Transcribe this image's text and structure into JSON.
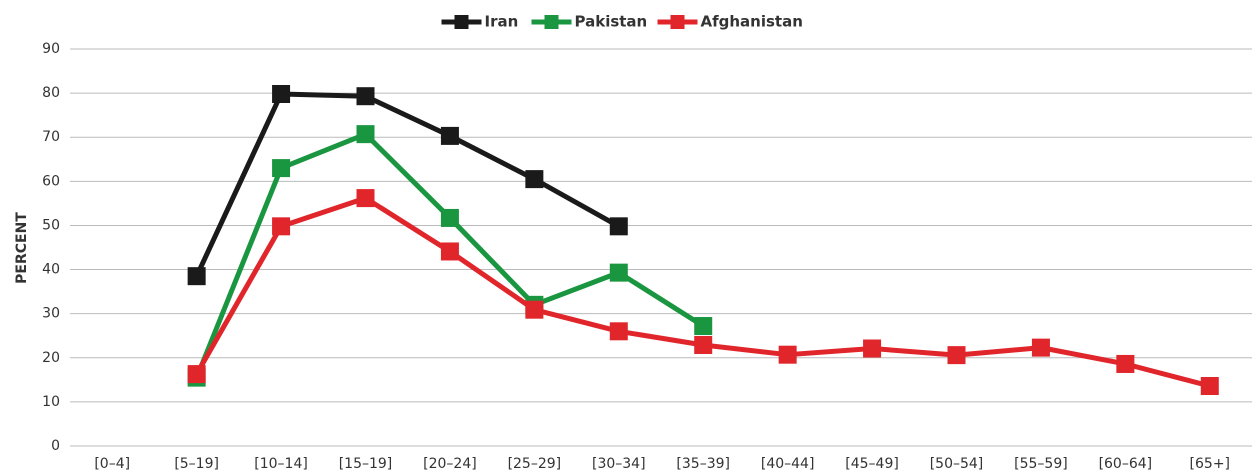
{
  "chart_data": {
    "type": "line",
    "y_label": "PERCENT",
    "categories": [
      "[0–4]",
      "[5–19]",
      "[10–14]",
      "[15–19]",
      "[20–24]",
      "[25–29]",
      "[30–34]",
      "[35–39]",
      "[40–44]",
      "[45–49]",
      "[50–54]",
      "[55–59]",
      "[60–64]",
      "[65+]"
    ],
    "series": [
      {
        "name": "Iran",
        "color": "#1a1a1a",
        "values": [
          null,
          38.5,
          79.8,
          79.3,
          70.3,
          60.5,
          49.8,
          null,
          null,
          null,
          null,
          null,
          null,
          null
        ]
      },
      {
        "name": "Pakistan",
        "color": "#1a9641",
        "values": [
          null,
          15.5,
          63,
          70.7,
          51.7,
          32,
          39.3,
          27.2,
          null,
          null,
          null,
          null,
          null,
          null
        ]
      },
      {
        "name": "Afghanistan",
        "color": "#e0262b",
        "values": [
          null,
          16.3,
          49.8,
          56.2,
          44.1,
          30.9,
          26,
          22.9,
          20.7,
          22.1,
          20.6,
          22.3,
          18.6,
          13.6
        ]
      }
    ],
    "ylim": [
      0,
      90
    ],
    "yticks": [
      0,
      10,
      20,
      30,
      40,
      50,
      60,
      70,
      80,
      90
    ],
    "grid": true,
    "legend": "top"
  }
}
